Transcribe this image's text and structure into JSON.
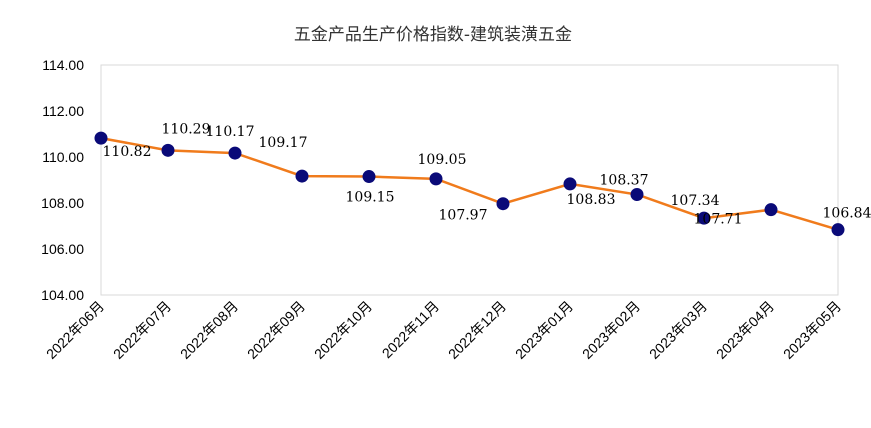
{
  "chart_data": {
    "type": "line",
    "title": "五金产品生产价格指数-建筑装潢五金",
    "xlabel": "",
    "ylabel": "",
    "categories": [
      "2022年06月",
      "2022年07月",
      "2022年08月",
      "2022年09月",
      "2022年10月",
      "2022年11月",
      "2022年12月",
      "2023年01月",
      "2023年02月",
      "2023年03月",
      "2023年04月",
      "2023年05月"
    ],
    "series": [
      {
        "values": [
          110.82,
          110.29,
          110.17,
          109.17,
          109.15,
          109.05,
          107.97,
          108.83,
          108.37,
          107.34,
          107.71,
          106.84
        ]
      }
    ],
    "data_labels": [
      "110.82",
      "110.29",
      "110.17",
      "109.17",
      "109.15",
      "109.05",
      "107.97",
      "108.83",
      "108.37",
      "107.34",
      "107.71",
      "106.84"
    ],
    "ylim": [
      104,
      114
    ],
    "yticks": [
      "104.00",
      "106.00",
      "108.00",
      "110.00",
      "112.00",
      "114.00"
    ],
    "grid": false,
    "legend": "none",
    "line_color": "#f07b1c",
    "marker_color": "#0a0a78"
  }
}
